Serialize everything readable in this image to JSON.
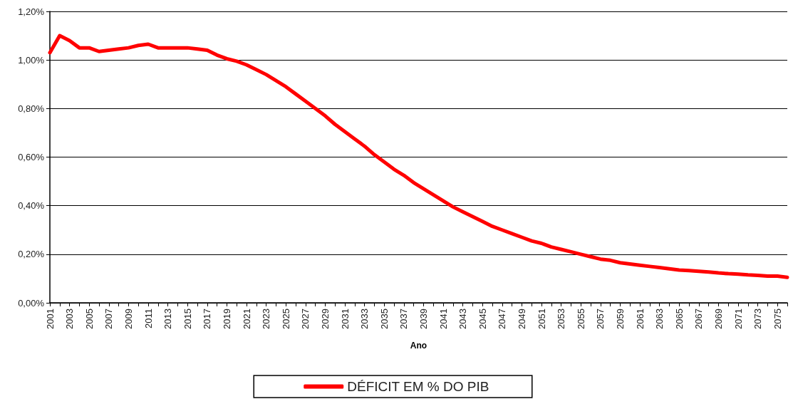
{
  "chart_data": {
    "type": "line",
    "xlabel": "Ano",
    "categories": [
      "2001",
      null,
      "2003",
      null,
      "2005",
      null,
      "2007",
      null,
      "2009",
      null,
      "2011",
      null,
      "2013",
      null,
      "2015",
      null,
      "2017",
      null,
      "2019",
      null,
      "2021",
      null,
      "2023",
      null,
      "2025",
      null,
      "2027",
      null,
      "2029",
      null,
      "2031",
      null,
      "2033",
      null,
      "2035",
      null,
      "2037",
      null,
      "2039",
      null,
      "2041",
      null,
      "2043",
      null,
      "2045",
      null,
      "2047",
      null,
      "2049",
      null,
      "2051",
      null,
      "2053",
      null,
      "2055",
      null,
      "2057",
      null,
      "2059",
      null,
      "2061",
      null,
      "2063",
      null,
      "2065",
      null,
      "2067",
      null,
      "2069",
      null,
      "2071",
      null,
      "2073",
      null,
      "2075",
      null
    ],
    "series": [
      {
        "name": "DÉFICIT EM % DO PIB",
        "color": "#ff0000",
        "values": [
          1.03,
          1.1,
          1.08,
          1.05,
          1.05,
          1.035,
          1.04,
          1.045,
          1.05,
          1.06,
          1.065,
          1.05,
          1.05,
          1.05,
          1.05,
          1.045,
          1.04,
          1.02,
          1.005,
          0.995,
          0.98,
          0.96,
          0.94,
          0.915,
          0.89,
          0.86,
          0.83,
          0.8,
          0.77,
          0.735,
          0.705,
          0.675,
          0.645,
          0.61,
          0.58,
          0.55,
          0.525,
          0.495,
          0.47,
          0.445,
          0.42,
          0.395,
          0.375,
          0.355,
          0.335,
          0.315,
          0.3,
          0.285,
          0.27,
          0.255,
          0.245,
          0.23,
          0.22,
          0.21,
          0.2,
          0.19,
          0.18,
          0.175,
          0.165,
          0.16,
          0.155,
          0.15,
          0.145,
          0.14,
          0.135,
          0.133,
          0.13,
          0.127,
          0.123,
          0.12,
          0.118,
          0.115,
          0.113,
          0.11,
          0.11,
          0.105
        ]
      }
    ],
    "ylim": [
      0,
      1.2
    ],
    "yticks": [
      {
        "value": 0,
        "label": "0,00%"
      },
      {
        "value": 0.2,
        "label": "0,20%"
      },
      {
        "value": 0.4,
        "label": "0,40%"
      },
      {
        "value": 0.6,
        "label": "0,60%"
      },
      {
        "value": 0.8,
        "label": "0,80%"
      },
      {
        "value": 1.0,
        "label": "1,00%"
      },
      {
        "value": 1.2,
        "label": "1,20%"
      }
    ],
    "grid": "y",
    "legend": "bottom",
    "marker": "none",
    "line_style": "solid"
  }
}
